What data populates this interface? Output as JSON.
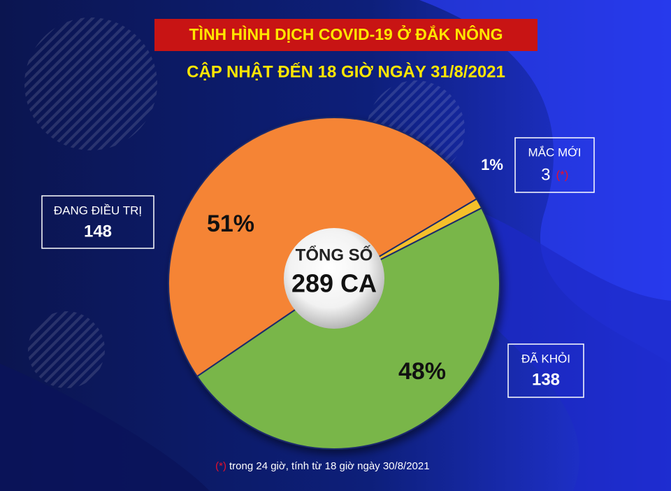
{
  "chart_data": {
    "type": "pie",
    "title": "TÌNH HÌNH DỊCH COVID-19 Ở ĐẮK NÔNG",
    "subtitle": "CẬP NHẬT ĐẾN 18 GIỜ NGÀY 31/8/2021",
    "center_label": "TỔNG SỐ",
    "center_value_label": "289 CA",
    "categories": [
      "ĐANG ĐIỀU TRỊ",
      "MẮC MỚI",
      "ĐÃ KHỎI"
    ],
    "values": [
      51,
      1,
      48
    ],
    "value_labels": [
      "51%",
      "1%",
      "48%"
    ],
    "counts": [
      148,
      3,
      138
    ],
    "colors": [
      "#f58436",
      "#f5c02a",
      "#79b64a"
    ],
    "footnote_marker": "(*)",
    "footnote": "trong 24 giờ, tính từ 18 giờ ngày 30/8/2021"
  }
}
